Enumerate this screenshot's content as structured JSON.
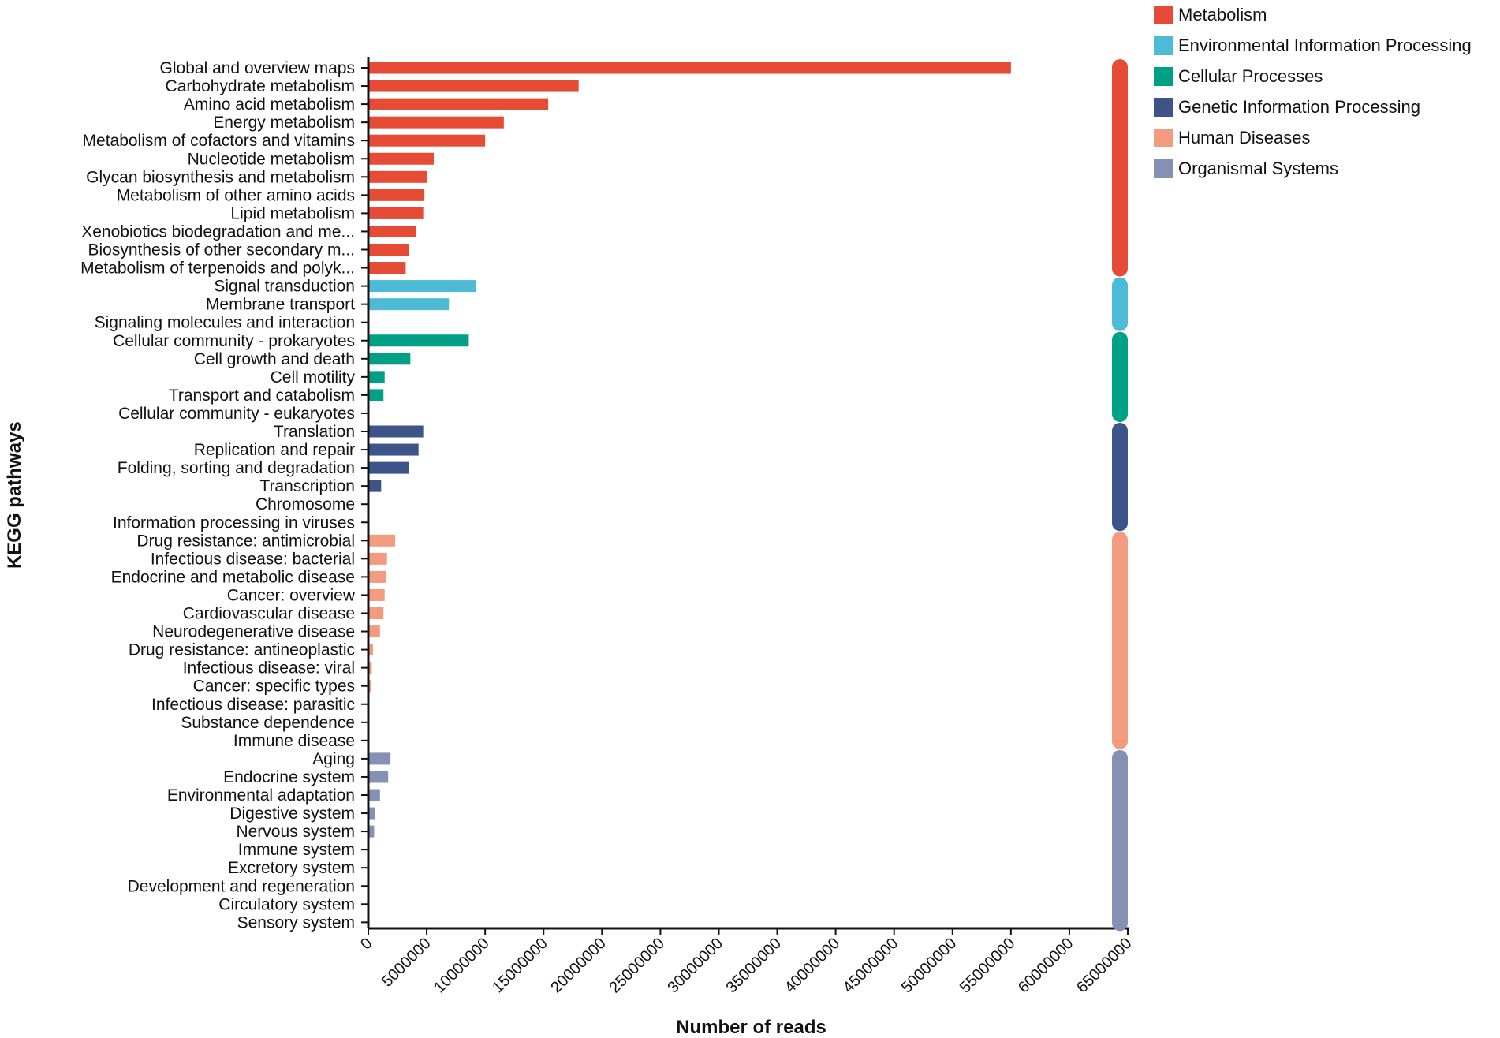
{
  "chart_data": {
    "type": "bar",
    "orientation": "horizontal",
    "title": "",
    "xlabel": "Number of reads",
    "ylabel": "KEGG pathways",
    "xlim": [
      0,
      65000000
    ],
    "xticks": [
      0,
      5000000,
      10000000,
      15000000,
      20000000,
      25000000,
      30000000,
      35000000,
      40000000,
      45000000,
      50000000,
      55000000,
      60000000,
      65000000
    ],
    "xtick_labels": [
      "0",
      "5000000",
      "10000000",
      "15000000",
      "20000000",
      "25000000",
      "30000000",
      "35000000",
      "40000000",
      "45000000",
      "50000000",
      "55000000",
      "60000000",
      "65000000"
    ],
    "grid": false,
    "legend_position": "top-right",
    "groups": [
      {
        "name": "Metabolism",
        "color": "#e64b35"
      },
      {
        "name": "Environmental Information Processing",
        "color": "#4dbbd5"
      },
      {
        "name": "Cellular Processes",
        "color": "#00a087"
      },
      {
        "name": "Genetic Information Processing",
        "color": "#3c5488"
      },
      {
        "name": "Human Diseases",
        "color": "#f39b7f"
      },
      {
        "name": "Organismal Systems",
        "color": "#8491b4"
      }
    ],
    "bars": [
      {
        "label": "Global and overview maps",
        "value": 55000000,
        "group": 0
      },
      {
        "label": "Carbohydrate metabolism",
        "value": 18000000,
        "group": 0
      },
      {
        "label": "Amino acid metabolism",
        "value": 15400000,
        "group": 0
      },
      {
        "label": "Energy metabolism",
        "value": 11600000,
        "group": 0
      },
      {
        "label": "Metabolism of cofactors and vitamins",
        "value": 10000000,
        "group": 0
      },
      {
        "label": "Nucleotide metabolism",
        "value": 5600000,
        "group": 0
      },
      {
        "label": "Glycan biosynthesis and metabolism",
        "value": 5000000,
        "group": 0
      },
      {
        "label": "Metabolism of other amino acids",
        "value": 4800000,
        "group": 0
      },
      {
        "label": "Lipid metabolism",
        "value": 4700000,
        "group": 0
      },
      {
        "label": "Xenobiotics biodegradation and me...",
        "value": 4100000,
        "group": 0
      },
      {
        "label": "Biosynthesis of other secondary m...",
        "value": 3500000,
        "group": 0
      },
      {
        "label": "Metabolism of terpenoids and polyk...",
        "value": 3200000,
        "group": 0
      },
      {
        "label": "Signal transduction",
        "value": 9200000,
        "group": 1
      },
      {
        "label": "Membrane transport",
        "value": 6900000,
        "group": 1
      },
      {
        "label": "Signaling molecules and interaction",
        "value": 0,
        "group": 1
      },
      {
        "label": "Cellular community - prokaryotes",
        "value": 8600000,
        "group": 2
      },
      {
        "label": "Cell growth and death",
        "value": 3600000,
        "group": 2
      },
      {
        "label": "Cell motility",
        "value": 1400000,
        "group": 2
      },
      {
        "label": "Transport and catabolism",
        "value": 1300000,
        "group": 2
      },
      {
        "label": "Cellular community - eukaryotes",
        "value": 0,
        "group": 2
      },
      {
        "label": "Translation",
        "value": 4700000,
        "group": 3
      },
      {
        "label": "Replication and repair",
        "value": 4300000,
        "group": 3
      },
      {
        "label": "Folding, sorting and degradation",
        "value": 3500000,
        "group": 3
      },
      {
        "label": "Transcription",
        "value": 1100000,
        "group": 3
      },
      {
        "label": "Chromosome",
        "value": 0,
        "group": 3
      },
      {
        "label": "Information processing in viruses",
        "value": 0,
        "group": 3
      },
      {
        "label": "Drug resistance: antimicrobial",
        "value": 2300000,
        "group": 4
      },
      {
        "label": "Infectious disease: bacterial",
        "value": 1600000,
        "group": 4
      },
      {
        "label": "Endocrine and metabolic disease",
        "value": 1500000,
        "group": 4
      },
      {
        "label": "Cancer: overview",
        "value": 1400000,
        "group": 4
      },
      {
        "label": "Cardiovascular disease",
        "value": 1300000,
        "group": 4
      },
      {
        "label": "Neurodegenerative disease",
        "value": 1000000,
        "group": 4
      },
      {
        "label": "Drug resistance: antineoplastic",
        "value": 400000,
        "group": 4
      },
      {
        "label": "Infectious disease: viral",
        "value": 300000,
        "group": 4
      },
      {
        "label": "Cancer: specific types",
        "value": 250000,
        "group": 4
      },
      {
        "label": "Infectious disease: parasitic",
        "value": 0,
        "group": 4
      },
      {
        "label": "Substance dependence",
        "value": 0,
        "group": 4
      },
      {
        "label": "Immune disease",
        "value": 0,
        "group": 4
      },
      {
        "label": "Aging",
        "value": 1900000,
        "group": 5
      },
      {
        "label": "Endocrine system",
        "value": 1700000,
        "group": 5
      },
      {
        "label": "Environmental adaptation",
        "value": 1000000,
        "group": 5
      },
      {
        "label": "Digestive system",
        "value": 550000,
        "group": 5
      },
      {
        "label": "Nervous system",
        "value": 500000,
        "group": 5
      },
      {
        "label": "Immune system",
        "value": 0,
        "group": 5
      },
      {
        "label": "Excretory system",
        "value": 0,
        "group": 5
      },
      {
        "label": "Development and regeneration",
        "value": 0,
        "group": 5
      },
      {
        "label": "Circulatory system",
        "value": 0,
        "group": 5
      },
      {
        "label": "Sensory system",
        "value": 0,
        "group": 5
      }
    ]
  }
}
